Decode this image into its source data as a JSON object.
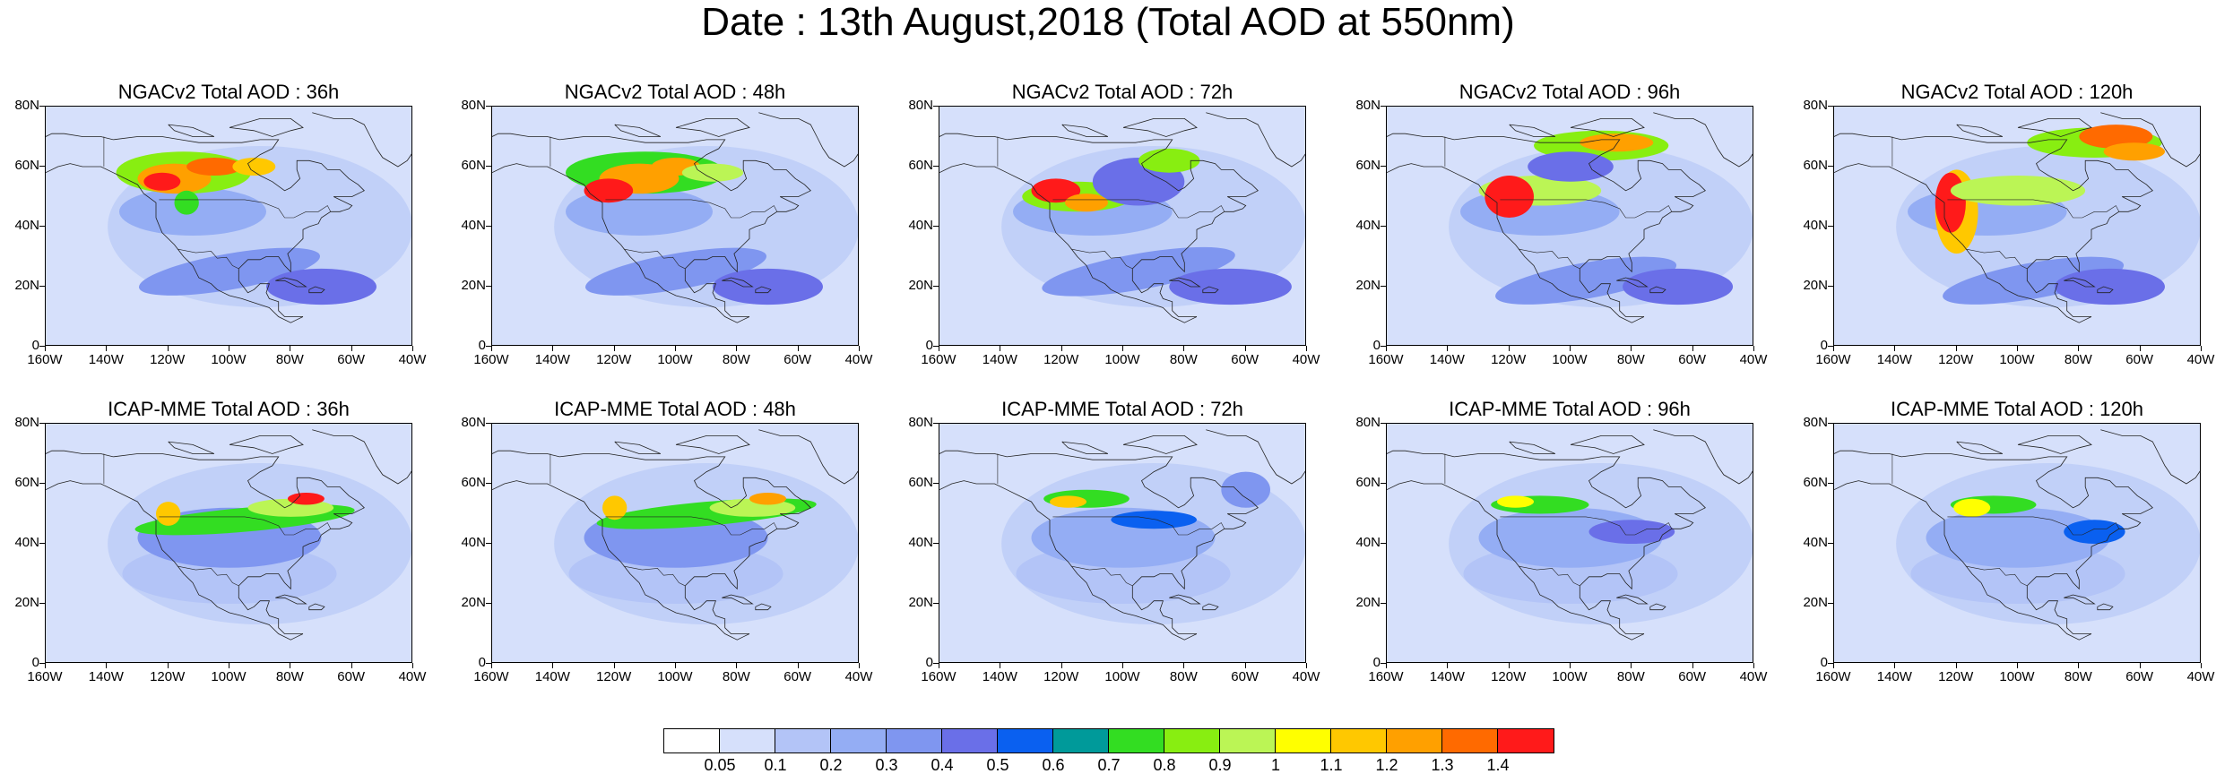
{
  "title": "Date : 13th August,2018 (Total AOD at 550nm)",
  "colors": {
    "background_low": "#dbe4fb",
    "land_line": "#222222"
  },
  "axes": {
    "lat_ticks": [
      "80N",
      "60N",
      "40N",
      "20N",
      "0"
    ],
    "lon_ticks": [
      "160W",
      "140W",
      "120W",
      "100W",
      "80W",
      "60W",
      "40W"
    ]
  },
  "panels": [
    {
      "title": "NGACv2 Total AOD : 36h",
      "model": "NGACv2",
      "lead": "36h"
    },
    {
      "title": "NGACv2 Total AOD : 48h",
      "model": "NGACv2",
      "lead": "48h"
    },
    {
      "title": "NGACv2 Total AOD : 72h",
      "model": "NGACv2",
      "lead": "72h"
    },
    {
      "title": "NGACv2 Total AOD : 96h",
      "model": "NGACv2",
      "lead": "96h"
    },
    {
      "title": "NGACv2 Total AOD : 120h",
      "model": "NGACv2",
      "lead": "120h"
    },
    {
      "title": "ICAP-MME Total AOD : 36h",
      "model": "ICAP-MME",
      "lead": "36h"
    },
    {
      "title": "ICAP-MME Total AOD : 48h",
      "model": "ICAP-MME",
      "lead": "48h"
    },
    {
      "title": "ICAP-MME Total AOD : 72h",
      "model": "ICAP-MME",
      "lead": "72h"
    },
    {
      "title": "ICAP-MME Total AOD : 96h",
      "model": "ICAP-MME",
      "lead": "96h"
    },
    {
      "title": "ICAP-MME Total AOD : 120h",
      "model": "ICAP-MME",
      "lead": "120h"
    }
  ],
  "colorbar": {
    "colors": [
      "#ffffff",
      "#d6e0fb",
      "#b3c4f7",
      "#94adf4",
      "#7f96f0",
      "#6a6fe8",
      "#0a60f0",
      "#009a9a",
      "#33dd22",
      "#88ee11",
      "#bbf555",
      "#ffff00",
      "#ffc800",
      "#ffa000",
      "#ff6a00",
      "#ff1a1a"
    ],
    "labels": [
      "0.05",
      "0.1",
      "0.2",
      "0.3",
      "0.4",
      "0.5",
      "0.6",
      "0.7",
      "0.8",
      "0.9",
      "1",
      "1.1",
      "1.2",
      "1.3",
      "1.4"
    ]
  }
}
